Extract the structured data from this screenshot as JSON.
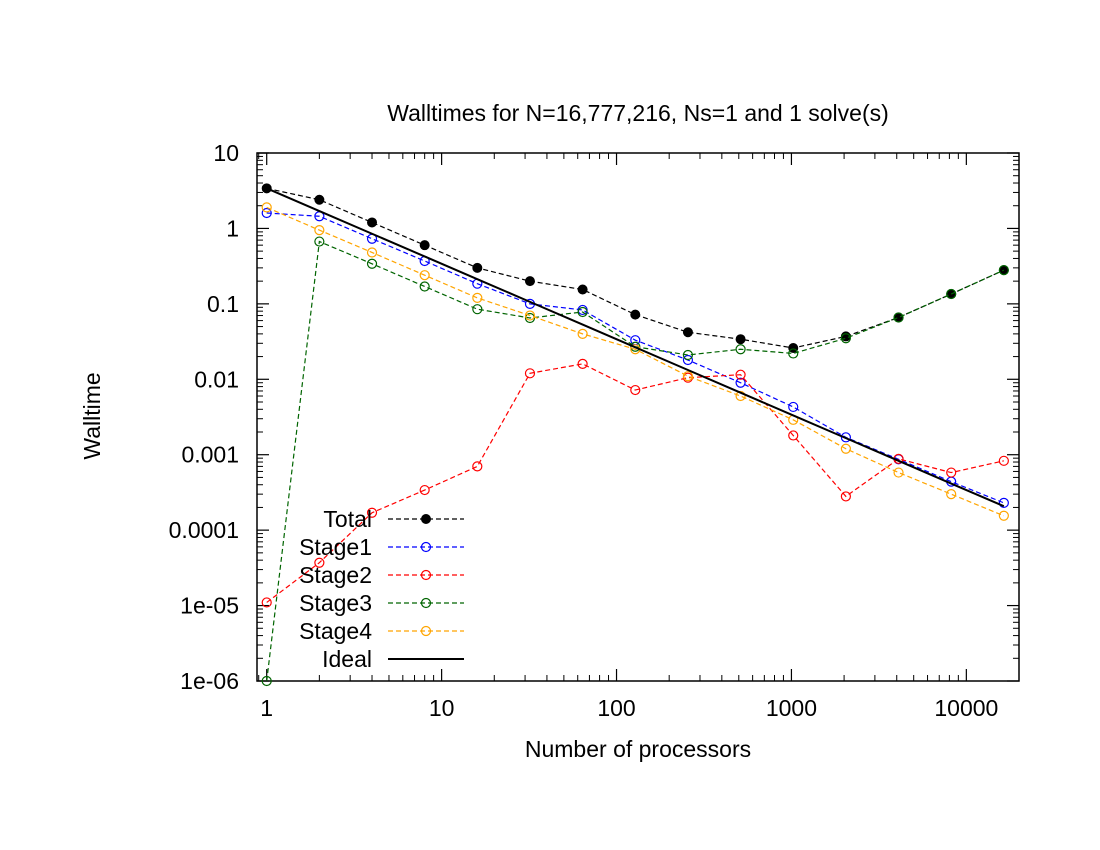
{
  "chart_data": {
    "type": "line",
    "title": "Walltimes for N=16,777,216, Ns=1 and 1 solve(s)",
    "xlabel": "Number of processors",
    "ylabel": "Walltime",
    "xscale": "log",
    "yscale": "log",
    "xlim": [
      0.88,
      20000
    ],
    "ylim": [
      1e-06,
      10
    ],
    "xticks": [
      1,
      10,
      100,
      1000,
      10000
    ],
    "xtick_labels": [
      "1",
      "10",
      "100",
      "1000",
      "10000"
    ],
    "yticks": [
      1e-06,
      1e-05,
      0.0001,
      0.001,
      0.01,
      0.1,
      1,
      10
    ],
    "ytick_labels": [
      "1e-06",
      "1e-05",
      "0.0001",
      "0.001",
      "0.01",
      "0.1",
      "1",
      "10"
    ],
    "grid": false,
    "legend_position": "bottom-left",
    "x": [
      1,
      2,
      4,
      8,
      16,
      32,
      64,
      128,
      256,
      512,
      1024,
      2048,
      4096,
      8192,
      16384
    ],
    "series": [
      {
        "name": "Total",
        "color": "#000000",
        "marker": "filled-circle",
        "dash": true,
        "values": [
          3.4,
          2.4,
          1.2,
          0.6,
          0.3,
          0.2,
          0.155,
          0.072,
          0.042,
          0.034,
          0.026,
          0.037,
          0.066,
          0.135,
          0.28
        ]
      },
      {
        "name": "Stage1",
        "color": "#0000ff",
        "marker": "open-circle",
        "dash": true,
        "values": [
          1.6,
          1.45,
          0.73,
          0.37,
          0.185,
          0.1,
          0.083,
          0.033,
          0.018,
          0.009,
          0.0043,
          0.0017,
          0.00087,
          0.00044,
          0.00023
        ]
      },
      {
        "name": "Stage2",
        "color": "#ff0000",
        "marker": "open-circle",
        "dash": true,
        "values": [
          1.1e-05,
          3.7e-05,
          0.00017,
          0.00034,
          0.0007,
          0.012,
          0.016,
          0.0072,
          0.0105,
          0.0115,
          0.0018,
          0.00028,
          0.00088,
          0.00058,
          0.00083
        ]
      },
      {
        "name": "Stage3",
        "color": "#006400",
        "marker": "open-circle",
        "dash": true,
        "values": [
          1e-06,
          0.67,
          0.34,
          0.17,
          0.085,
          0.065,
          0.078,
          0.027,
          0.021,
          0.025,
          0.022,
          0.035,
          0.066,
          0.135,
          0.28
        ]
      },
      {
        "name": "Stage4",
        "color": "#ffa500",
        "marker": "open-circle",
        "dash": true,
        "values": [
          1.9,
          0.95,
          0.48,
          0.24,
          0.12,
          0.07,
          0.04,
          0.025,
          0.011,
          0.006,
          0.0029,
          0.0012,
          0.00058,
          0.0003,
          0.000155
        ]
      },
      {
        "name": "Ideal",
        "color": "#000000",
        "marker": "none",
        "dash": false,
        "values": [
          3.4,
          1.7,
          0.85,
          0.425,
          0.2125,
          0.10625,
          0.053125,
          0.0265625,
          0.01328125,
          0.006640625,
          0.0033203125,
          0.00166015625,
          0.000830078125,
          0.0004150390625,
          0.00020751953125
        ]
      }
    ]
  }
}
